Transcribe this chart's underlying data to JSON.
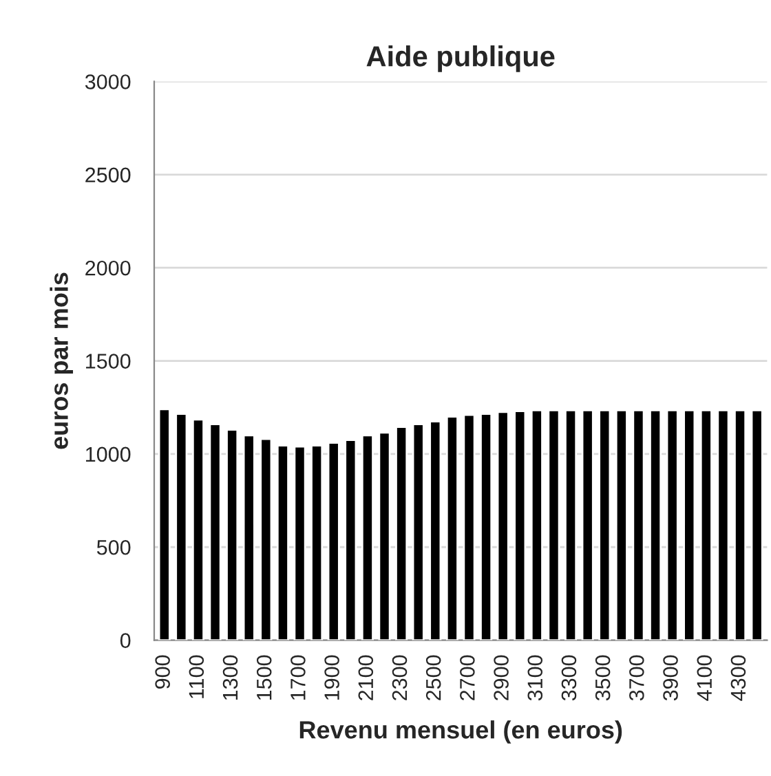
{
  "chart_data": {
    "type": "bar",
    "title": "Aide publique",
    "xlabel": "Revenu mensuel (en euros)",
    "ylabel": "euros par mois",
    "categories": [
      "900",
      null,
      "1100",
      null,
      "1300",
      null,
      "1500",
      null,
      "1700",
      null,
      "1900",
      null,
      "2100",
      null,
      "2300",
      null,
      "2500",
      null,
      "2700",
      null,
      "2900",
      null,
      "3100",
      null,
      "3300",
      null,
      "3500",
      null,
      "3700",
      null,
      "3900",
      null,
      "4100",
      null,
      "4300",
      null
    ],
    "values": [
      1240,
      1215,
      1185,
      1160,
      1130,
      1100,
      1080,
      1045,
      1040,
      1045,
      1060,
      1075,
      1100,
      1115,
      1145,
      1160,
      1175,
      1200,
      1210,
      1215,
      1225,
      1230,
      1235,
      1235,
      1235,
      1235,
      1235,
      1235,
      1235,
      1235,
      1235,
      1235,
      1235,
      1235,
      1235,
      1235
    ],
    "color": "#000000",
    "ylim": [
      0,
      3000
    ],
    "yticks": [
      0,
      500,
      1000,
      1500,
      2000,
      2500,
      3000
    ],
    "grid": "y",
    "legend": false
  }
}
